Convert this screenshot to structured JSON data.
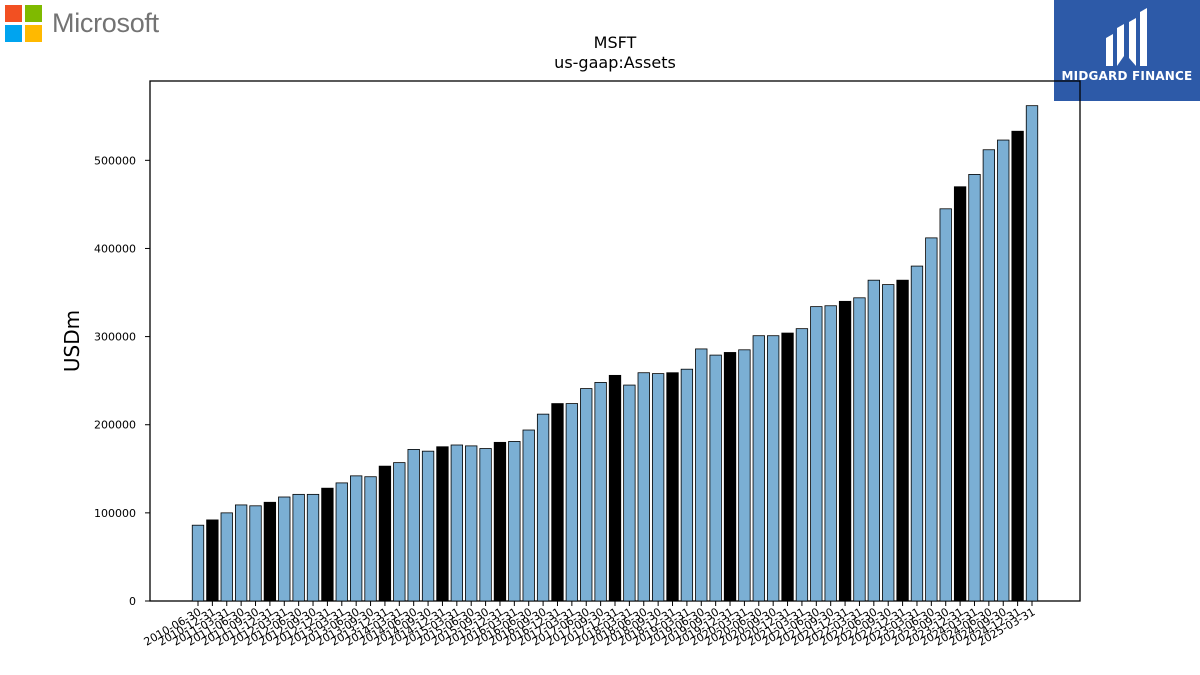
{
  "brand": {
    "microsoft_text": "Microsoft",
    "microsoft_colors": [
      "#f25022",
      "#7fba00",
      "#00a4ef",
      "#ffb900"
    ],
    "midgard_text": "MIDGARD FINANCE",
    "midgard_bg": "#2d5aa8"
  },
  "chart_data": {
    "type": "bar",
    "title": "MSFT",
    "subtitle": "us-gaap:Assets",
    "xlabel": "",
    "ylabel": "USDm",
    "ylim": [
      0,
      590000
    ],
    "yticks": [
      0,
      100000,
      200000,
      300000,
      400000,
      500000
    ],
    "ytick_labels": [
      "0",
      "100000",
      "200000",
      "300000",
      "400000",
      "500000"
    ],
    "colors": {
      "quarter": "#7bafd4",
      "fiscal_year_end": "#000000",
      "edge": "#000000"
    },
    "legend": "none",
    "grid": false,
    "categories": [
      "2010-06-30",
      "2010-12-31",
      "2011-03-31",
      "2011-06-30",
      "2011-09-30",
      "2011-12-31",
      "2012-03-31",
      "2012-06-30",
      "2012-09-30",
      "2012-12-31",
      "2013-03-31",
      "2013-06-30",
      "2013-09-30",
      "2013-12-31",
      "2014-03-31",
      "2014-06-30",
      "2014-09-30",
      "2014-12-31",
      "2015-03-31",
      "2015-06-30",
      "2015-09-30",
      "2015-12-31",
      "2016-03-31",
      "2016-06-30",
      "2016-09-30",
      "2016-12-31",
      "2017-03-31",
      "2017-06-30",
      "2017-09-30",
      "2017-12-31",
      "2018-03-31",
      "2018-06-30",
      "2018-09-30",
      "2018-12-31",
      "2019-03-31",
      "2019-06-30",
      "2019-09-30",
      "2019-12-31",
      "2020-03-31",
      "2020-06-30",
      "2020-09-30",
      "2020-12-31",
      "2021-03-31",
      "2021-06-30",
      "2021-09-30",
      "2021-12-31",
      "2022-03-31",
      "2022-06-30",
      "2022-09-30",
      "2022-12-31",
      "2023-03-31",
      "2023-06-30",
      "2023-09-30",
      "2023-12-31",
      "2024-03-31",
      "2024-06-30",
      "2024-09-30",
      "2024-12-31",
      "2025-03-31"
    ],
    "values": [
      86000,
      92000,
      100000,
      109000,
      108000,
      112000,
      118000,
      121000,
      121000,
      128000,
      134000,
      142000,
      141000,
      153000,
      157000,
      172000,
      170000,
      175000,
      177000,
      176000,
      173000,
      180000,
      181000,
      194000,
      212000,
      224000,
      224000,
      241000,
      248000,
      256000,
      245000,
      259000,
      258000,
      259000,
      263000,
      286000,
      279000,
      282000,
      285000,
      301000,
      301000,
      304000,
      309000,
      334000,
      335000,
      340000,
      344000,
      364000,
      359000,
      364000,
      380000,
      412000,
      445000,
      470000,
      484000,
      512000,
      523000,
      533000,
      562000
    ],
    "fiscal_year_end": [
      false,
      true,
      false,
      false,
      false,
      true,
      false,
      false,
      false,
      true,
      false,
      false,
      false,
      true,
      false,
      false,
      false,
      true,
      false,
      false,
      false,
      true,
      false,
      false,
      false,
      true,
      false,
      false,
      false,
      true,
      false,
      false,
      false,
      true,
      false,
      false,
      false,
      true,
      false,
      false,
      false,
      true,
      false,
      false,
      false,
      true,
      false,
      false,
      false,
      true,
      false,
      false,
      false,
      true,
      false,
      false,
      false,
      true,
      false
    ]
  }
}
